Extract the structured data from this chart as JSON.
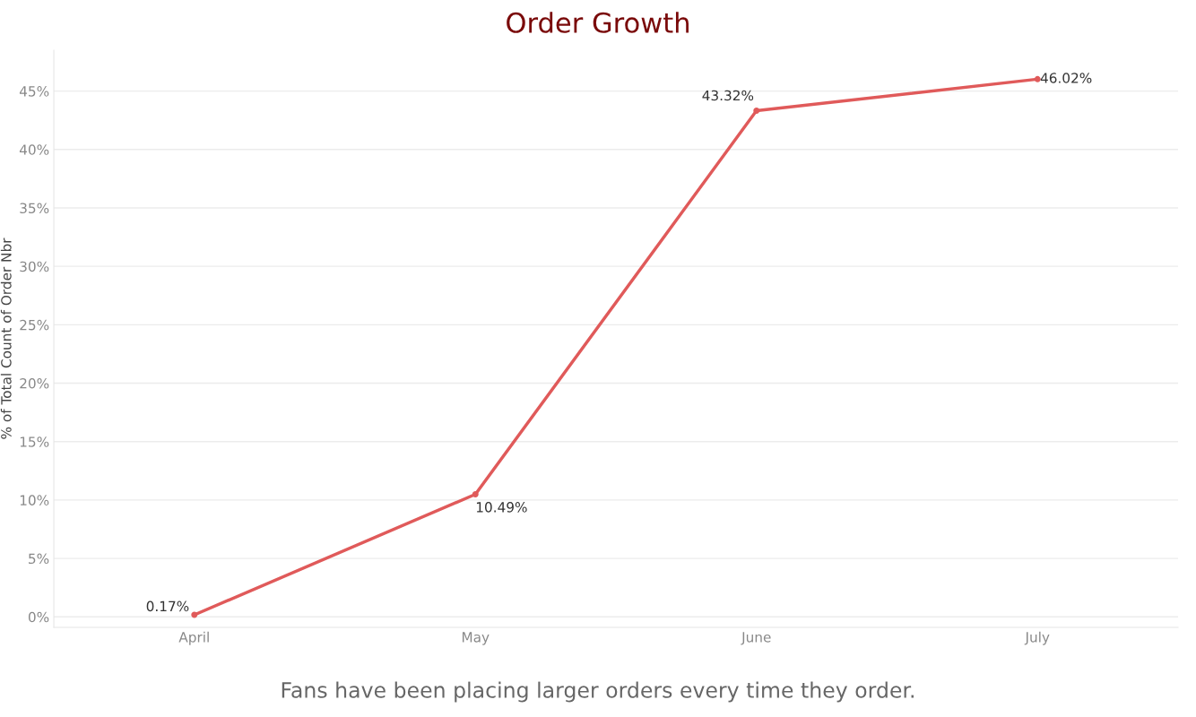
{
  "chart_data": {
    "type": "line",
    "title": "Order Growth",
    "ylabel": "% of Total Count of Order Nbr",
    "categories": [
      "April",
      "May",
      "June",
      "July"
    ],
    "series": [
      {
        "color": "#e05a5a",
        "values": [
          0.17,
          10.49,
          43.32,
          46.02
        ],
        "value_labels": [
          "0.17%",
          "10.49%",
          "43.32%",
          "46.02%"
        ]
      }
    ],
    "ylim": [
      -0.9,
      48.5
    ],
    "yticks": [
      {
        "value": 0,
        "label": "0%"
      },
      {
        "value": 5,
        "label": "5%"
      },
      {
        "value": 10,
        "label": "10%"
      },
      {
        "value": 15,
        "label": "15%"
      },
      {
        "value": 20,
        "label": "20%"
      },
      {
        "value": 25,
        "label": "25%"
      },
      {
        "value": 30,
        "label": "30%"
      },
      {
        "value": 35,
        "label": "35%"
      },
      {
        "value": 40,
        "label": "40%"
      },
      {
        "value": 45,
        "label": "45%"
      }
    ],
    "grid": "y",
    "marker": "circle",
    "line_style": "solid",
    "annotations": [
      "Fans have been placing larger orders every time they order."
    ]
  }
}
